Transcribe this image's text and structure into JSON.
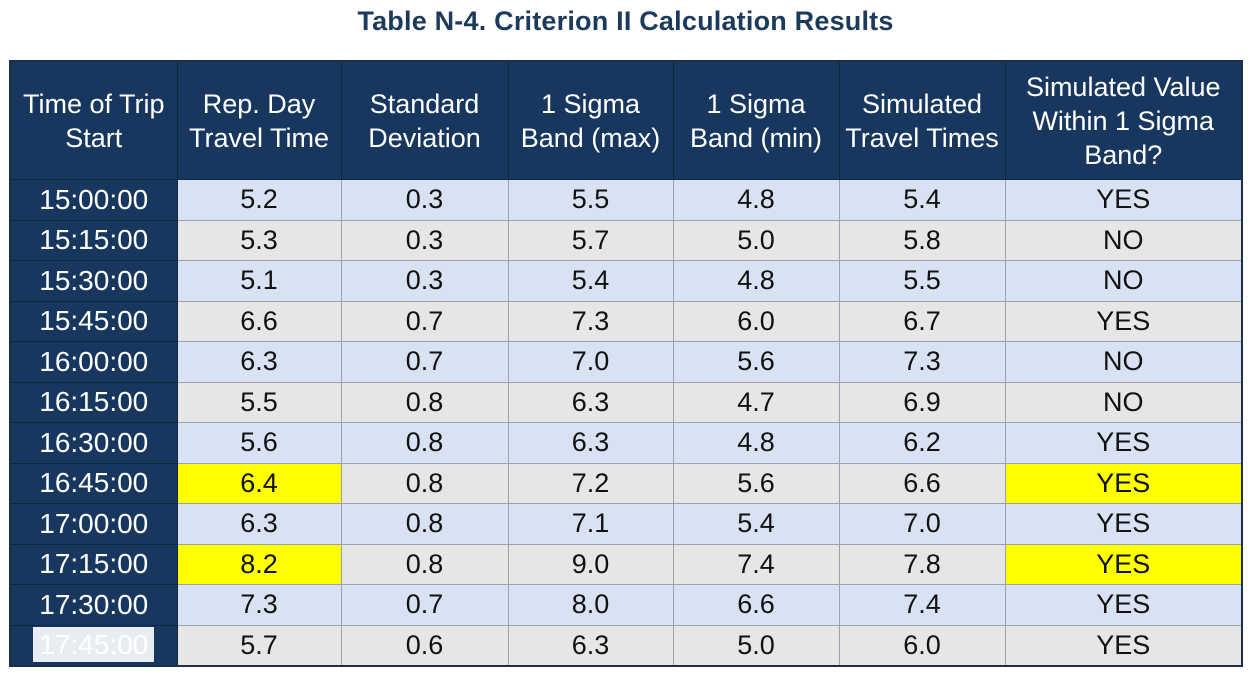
{
  "title": "Table N-4. Criterion II Calculation Results",
  "colors": {
    "header_bg": "#17375e",
    "row_blue": "#d9e2f3",
    "row_gray": "#e6e6e6",
    "highlight": "#ffff00"
  },
  "columns": [
    "Time of Trip Start",
    "Rep. Day Travel Time",
    "Standard Deviation",
    "1 Sigma Band (max)",
    "1 Sigma Band (min)",
    "Simulated Travel Times",
    "Simulated Value Within 1 Sigma Band?"
  ],
  "rows": [
    [
      "15:00:00",
      "5.2",
      "0.3",
      "5.5",
      "4.8",
      "5.4",
      "YES"
    ],
    [
      "15:15:00",
      "5.3",
      "0.3",
      "5.7",
      "5.0",
      "5.8",
      "NO"
    ],
    [
      "15:30:00",
      "5.1",
      "0.3",
      "5.4",
      "4.8",
      "5.5",
      "NO"
    ],
    [
      "15:45:00",
      "6.6",
      "0.7",
      "7.3",
      "6.0",
      "6.7",
      "YES"
    ],
    [
      "16:00:00",
      "6.3",
      "0.7",
      "7.0",
      "5.6",
      "7.3",
      "NO"
    ],
    [
      "16:15:00",
      "5.5",
      "0.8",
      "6.3",
      "4.7",
      "6.9",
      "NO"
    ],
    [
      "16:30:00",
      "5.6",
      "0.8",
      "6.3",
      "4.8",
      "6.2",
      "YES"
    ],
    [
      "16:45:00",
      "6.4",
      "0.8",
      "7.2",
      "5.6",
      "6.6",
      "YES"
    ],
    [
      "17:00:00",
      "6.3",
      "0.8",
      "7.1",
      "5.4",
      "7.0",
      "YES"
    ],
    [
      "17:15:00",
      "8.2",
      "0.8",
      "9.0",
      "7.4",
      "7.8",
      "YES"
    ],
    [
      "17:30:00",
      "7.3",
      "0.7",
      "8.0",
      "6.6",
      "7.4",
      "YES"
    ],
    [
      "17:45:00",
      "5.7",
      "0.6",
      "6.3",
      "5.0",
      "6.0",
      "YES"
    ]
  ],
  "highlighted_rows": [
    7,
    9
  ],
  "highlighted_columns": [
    1,
    6
  ]
}
